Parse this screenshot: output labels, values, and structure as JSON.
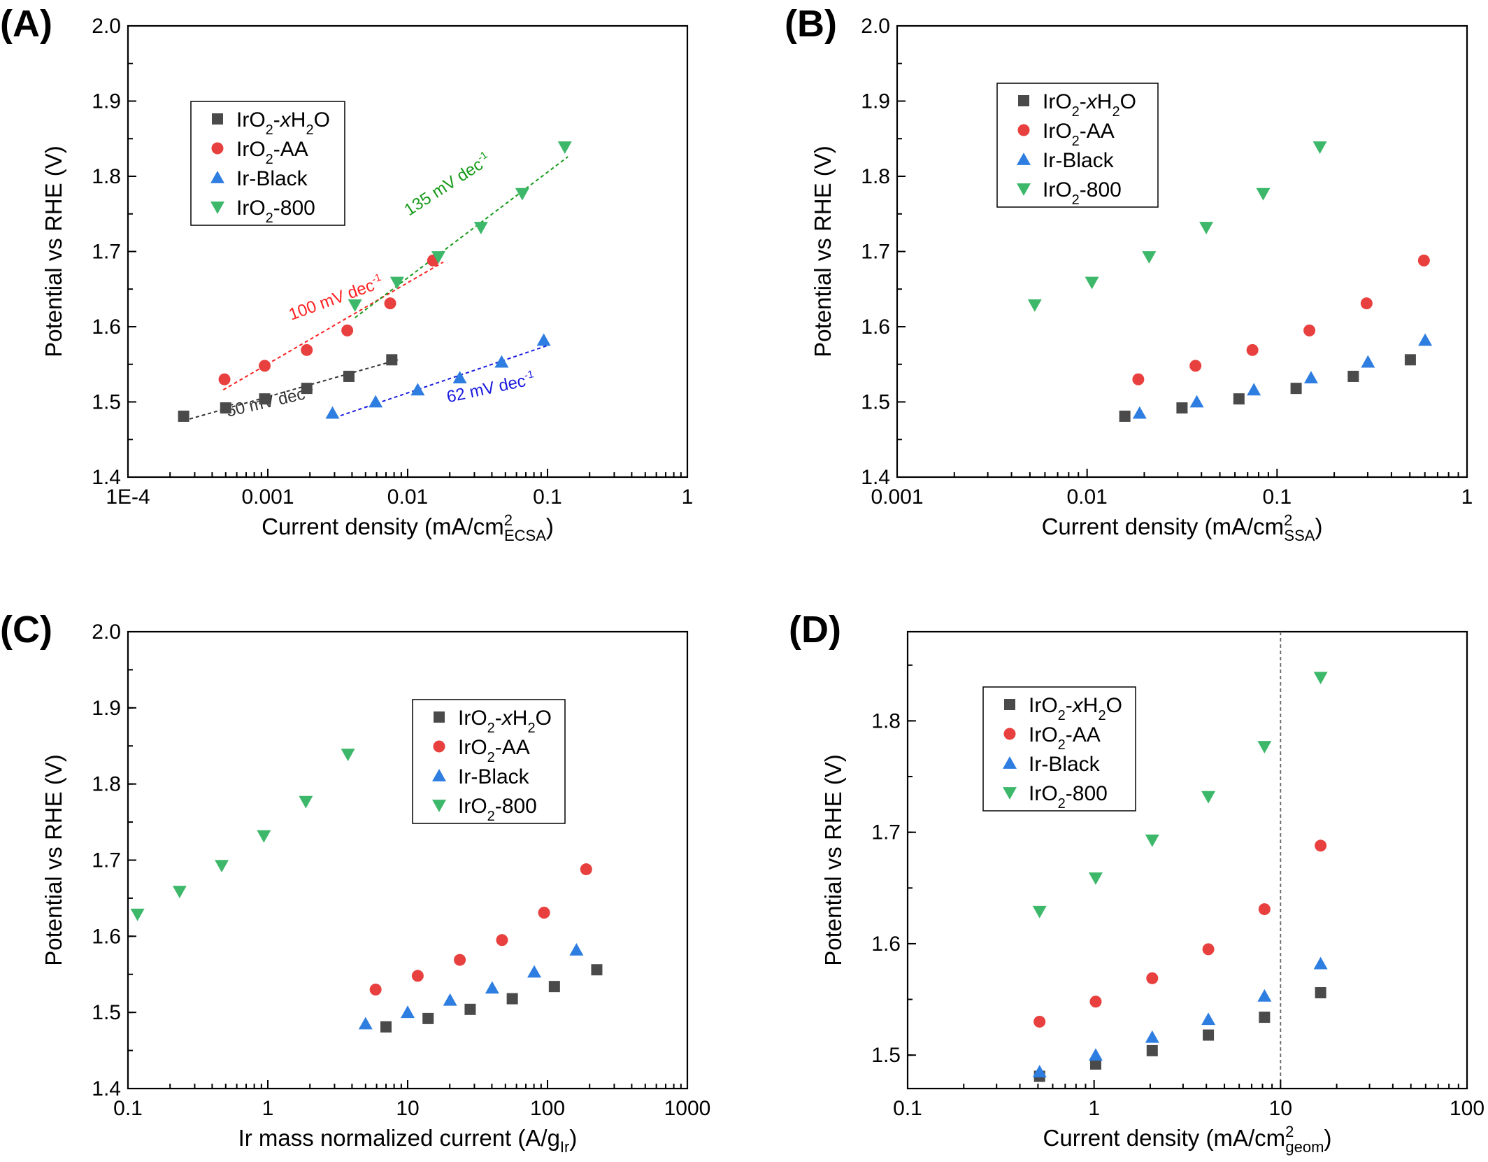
{
  "colors": {
    "IrO2-xH2O": "#4a4a4a",
    "IrO2-AA": "#e8403f",
    "Ir-Black": "#2e7de0",
    "IrO2-800": "#3db86a"
  },
  "legend_items": [
    {
      "key": "IrO2-xH2O",
      "pre": "IrO",
      "sub1": "2",
      "mid": "-",
      "ital": "x",
      "mid2": "H",
      "sub2": "2",
      "post": "O",
      "marker": "square"
    },
    {
      "key": "IrO2-AA",
      "pre": "IrO",
      "sub1": "2",
      "post": "-AA",
      "marker": "circle"
    },
    {
      "key": "Ir-Black",
      "pre": "Ir-Black",
      "marker": "triangle-up"
    },
    {
      "key": "IrO2-800",
      "pre": "IrO",
      "sub1": "2",
      "post": "-800",
      "marker": "triangle-down"
    }
  ],
  "chart_data": [
    {
      "panel": "(A)",
      "type": "scatter",
      "xscale": "log",
      "xlim": [
        0.0001,
        1
      ],
      "ylim": [
        1.4,
        2.0
      ],
      "xticks": [
        {
          "v": 0.0001,
          "t": "1E-4"
        },
        {
          "v": 0.001,
          "t": "0.001"
        },
        {
          "v": 0.01,
          "t": "0.01"
        },
        {
          "v": 0.1,
          "t": "0.1"
        },
        {
          "v": 1,
          "t": "1"
        }
      ],
      "yticks": [
        "1.4",
        "1.5",
        "1.6",
        "1.7",
        "1.8",
        "1.9",
        "2.0"
      ],
      "xlabel": {
        "pre": "Current density (mA/cm",
        "sup": "2",
        "sub": "ECSA",
        "post": ")"
      },
      "ylabel": "Potential vs RHE (V)",
      "legend_position": "upper-left",
      "series": [
        {
          "name": "IrO2-xH2O",
          "x": [
            0.00025,
            0.0005,
            0.00095,
            0.0019,
            0.0038,
            0.0077
          ],
          "y": [
            1.481,
            1.492,
            1.504,
            1.518,
            1.534,
            1.556
          ]
        },
        {
          "name": "IrO2-AA",
          "x": [
            0.00049,
            0.00095,
            0.0019,
            0.0037,
            0.0075,
            0.0152
          ],
          "y": [
            1.53,
            1.548,
            1.569,
            1.595,
            1.631,
            1.688
          ]
        },
        {
          "name": "Ir-Black",
          "x": [
            0.0029,
            0.0059,
            0.0118,
            0.0236,
            0.047,
            0.094
          ],
          "y": [
            1.485,
            1.5,
            1.516,
            1.532,
            1.553,
            1.582
          ]
        },
        {
          "name": "IrO2-800",
          "x": [
            0.0042,
            0.0084,
            0.0166,
            0.0334,
            0.066,
            0.133
          ],
          "y": [
            1.629,
            1.659,
            1.693,
            1.732,
            1.777,
            1.839
          ]
        }
      ],
      "fits": [
        {
          "series": "IrO2-xH2O",
          "label_pre": "50 mV dec",
          "label_sup": "-1",
          "x": [
            0.00025,
            0.0085
          ],
          "y": [
            1.475,
            1.556
          ]
        },
        {
          "series": "IrO2-AA",
          "label_pre": "100 mV dec",
          "label_sup": "-1",
          "x": [
            0.00048,
            0.018
          ],
          "y": [
            1.516,
            1.686
          ]
        },
        {
          "series": "Ir-Black",
          "label_pre": "62 mV dec",
          "label_sup": "-1",
          "x": [
            0.003,
            0.1
          ],
          "y": [
            1.479,
            1.575
          ]
        },
        {
          "series": "IrO2-800",
          "label_pre": "135 mV dec",
          "label_sup": "-1",
          "x": [
            0.0042,
            0.14
          ],
          "y": [
            1.612,
            1.826
          ]
        }
      ]
    },
    {
      "panel": "(B)",
      "type": "scatter",
      "xscale": "log",
      "xlim": [
        0.001,
        1
      ],
      "ylim": [
        1.4,
        2.0
      ],
      "xticks": [
        {
          "v": 0.001,
          "t": "0.001"
        },
        {
          "v": 0.01,
          "t": "0.01"
        },
        {
          "v": 0.1,
          "t": "0.1"
        },
        {
          "v": 1,
          "t": "1"
        }
      ],
      "yticks": [
        "1.4",
        "1.5",
        "1.6",
        "1.7",
        "1.8",
        "1.9",
        "2.0"
      ],
      "xlabel": {
        "pre": "Current density (mA/cm",
        "sup": "2",
        "sub": "SSA",
        "post": ")"
      },
      "ylabel": "Potential vs RHE (V)",
      "legend_position": "upper-left",
      "series": [
        {
          "name": "IrO2-xH2O",
          "x": [
            0.0158,
            0.0316,
            0.063,
            0.126,
            0.252,
            0.503
          ],
          "y": [
            1.481,
            1.492,
            1.504,
            1.518,
            1.534,
            1.556
          ]
        },
        {
          "name": "IrO2-AA",
          "x": [
            0.0186,
            0.0372,
            0.0742,
            0.148,
            0.296,
            0.593
          ],
          "y": [
            1.53,
            1.548,
            1.569,
            1.595,
            1.631,
            1.688
          ]
        },
        {
          "name": "Ir-Black",
          "x": [
            0.0189,
            0.0378,
            0.0755,
            0.151,
            0.301,
            0.602
          ],
          "y": [
            1.485,
            1.5,
            1.516,
            1.532,
            1.553,
            1.582
          ]
        },
        {
          "name": "IrO2-800",
          "x": [
            0.0053,
            0.0106,
            0.0212,
            0.0424,
            0.0845,
            0.168
          ],
          "y": [
            1.629,
            1.659,
            1.693,
            1.732,
            1.777,
            1.839
          ]
        }
      ]
    },
    {
      "panel": "(C)",
      "type": "scatter",
      "xscale": "log",
      "xlim": [
        0.1,
        1000
      ],
      "ylim": [
        1.4,
        2.0
      ],
      "xticks": [
        {
          "v": 0.1,
          "t": "0.1"
        },
        {
          "v": 1,
          "t": "1"
        },
        {
          "v": 10,
          "t": "10"
        },
        {
          "v": 100,
          "t": "100"
        },
        {
          "v": 1000,
          "t": "1000"
        }
      ],
      "yticks": [
        "1.4",
        "1.5",
        "1.6",
        "1.7",
        "1.8",
        "1.9",
        "2.0"
      ],
      "xlabel": {
        "pre": "Ir mass normalized current (A/g",
        "sub": "Ir",
        "post": ")"
      },
      "ylabel": "Potential vs RHE (V)",
      "legend_position": "upper-right",
      "series": [
        {
          "name": "IrO2-xH2O",
          "x": [
            7.0,
            14.0,
            28.0,
            56.0,
            112,
            225
          ],
          "y": [
            1.481,
            1.492,
            1.504,
            1.518,
            1.534,
            1.556
          ]
        },
        {
          "name": "IrO2-AA",
          "x": [
            5.9,
            11.8,
            23.6,
            47.3,
            94.5,
            189
          ],
          "y": [
            1.53,
            1.548,
            1.569,
            1.595,
            1.631,
            1.688
          ]
        },
        {
          "name": "Ir-Black",
          "x": [
            5.0,
            10.0,
            20.1,
            40.2,
            80.4,
            161
          ],
          "y": [
            1.485,
            1.5,
            1.516,
            1.532,
            1.553,
            1.582
          ]
        },
        {
          "name": "IrO2-800",
          "x": [
            0.117,
            0.234,
            0.468,
            0.937,
            1.87,
            3.74
          ],
          "y": [
            1.629,
            1.659,
            1.693,
            1.732,
            1.777,
            1.839
          ]
        }
      ]
    },
    {
      "panel": "(D)",
      "type": "scatter",
      "xscale": "log",
      "xlim": [
        0.1,
        100
      ],
      "ylim": [
        1.47,
        1.88
      ],
      "xticks": [
        {
          "v": 0.1,
          "t": "0.1"
        },
        {
          "v": 1,
          "t": "1"
        },
        {
          "v": 10,
          "t": "10"
        },
        {
          "v": 100,
          "t": "100"
        }
      ],
      "yticks": [
        "1.5",
        "1.6",
        "1.7",
        "1.8"
      ],
      "xlabel": {
        "pre": "Current density (mA/cm",
        "sup": "2",
        "sub": "geom",
        "post": ")"
      },
      "ylabel": "Potential vs RHE (V)",
      "legend_position": "upper-left",
      "vline_x": 10,
      "series": [
        {
          "name": "IrO2-xH2O",
          "x": [
            0.51,
            1.02,
            2.05,
            4.1,
            8.2,
            16.4
          ],
          "y": [
            1.481,
            1.492,
            1.504,
            1.518,
            1.534,
            1.556
          ]
        },
        {
          "name": "IrO2-AA",
          "x": [
            0.51,
            1.02,
            2.05,
            4.1,
            8.2,
            16.4
          ],
          "y": [
            1.53,
            1.548,
            1.569,
            1.595,
            1.631,
            1.688
          ]
        },
        {
          "name": "Ir-Black",
          "x": [
            0.51,
            1.02,
            2.05,
            4.1,
            8.2,
            16.4
          ],
          "y": [
            1.485,
            1.5,
            1.516,
            1.532,
            1.553,
            1.582
          ]
        },
        {
          "name": "IrO2-800",
          "x": [
            0.51,
            1.02,
            2.05,
            4.1,
            8.2,
            16.4
          ],
          "y": [
            1.629,
            1.659,
            1.693,
            1.732,
            1.777,
            1.839
          ]
        }
      ]
    }
  ]
}
